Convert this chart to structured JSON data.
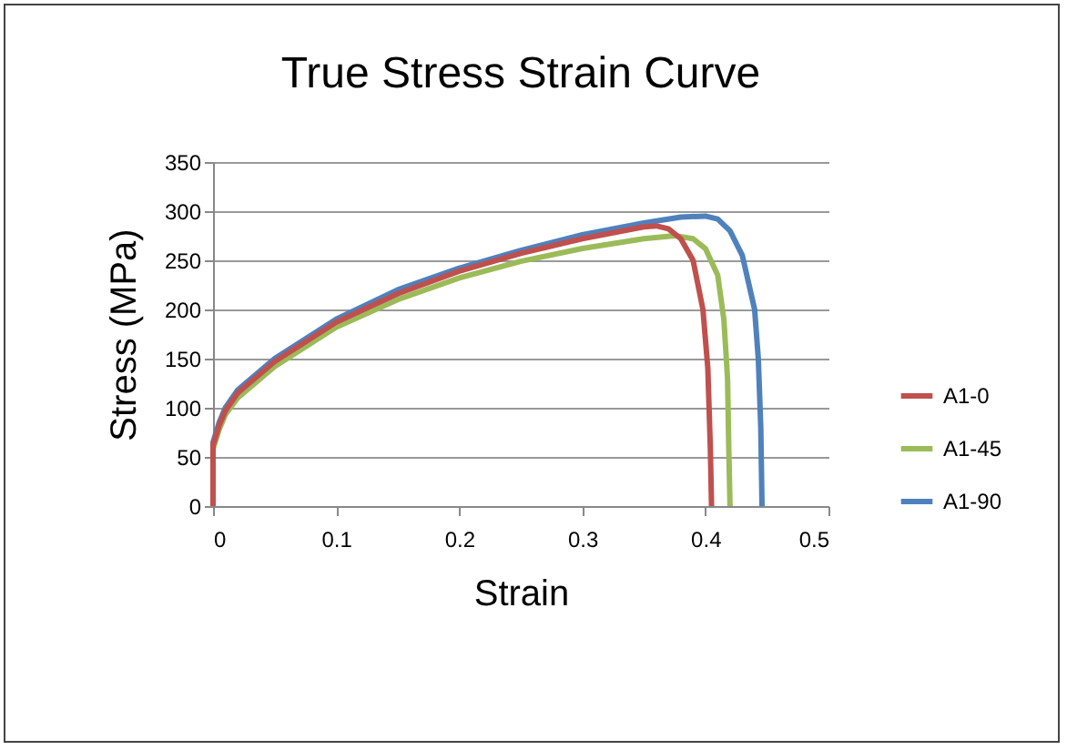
{
  "chart_data": {
    "type": "line",
    "title": "True Stress Strain Curve",
    "xlabel": "Strain",
    "ylabel": "Stress (MPa)",
    "xlim": [
      0,
      0.5
    ],
    "xticks": [
      0,
      0.1,
      0.2,
      0.3,
      0.4,
      0.5
    ],
    "ylim": [
      0,
      350
    ],
    "yticks": [
      0,
      50,
      100,
      150,
      200,
      250,
      300,
      350
    ],
    "grid": "y",
    "legend": "right",
    "series": [
      {
        "name": "A1-0",
        "color": "#c0504d",
        "x": [
          0,
          0,
          0.005,
          0.01,
          0.02,
          0.05,
          0.1,
          0.15,
          0.2,
          0.25,
          0.3,
          0.35,
          0.36,
          0.37,
          0.38,
          0.39,
          0.398,
          0.402,
          0.404,
          0.405
        ],
        "values": [
          0,
          62,
          82,
          97,
          115,
          147,
          187,
          216,
          239,
          257,
          272,
          284,
          285,
          282,
          272,
          250,
          200,
          140,
          60,
          0
        ]
      },
      {
        "name": "A1-45",
        "color": "#9bbb59",
        "x": [
          0,
          0,
          0.005,
          0.01,
          0.02,
          0.05,
          0.1,
          0.15,
          0.2,
          0.25,
          0.3,
          0.35,
          0.375,
          0.39,
          0.4,
          0.41,
          0.415,
          0.418,
          0.419,
          0.42
        ],
        "values": [
          0,
          58,
          78,
          93,
          110,
          142,
          182,
          210,
          232,
          249,
          262,
          272,
          275,
          272,
          262,
          235,
          190,
          130,
          60,
          0
        ]
      },
      {
        "name": "A1-90",
        "color": "#4f81bd",
        "x": [
          0,
          0,
          0.005,
          0.01,
          0.02,
          0.05,
          0.1,
          0.15,
          0.2,
          0.25,
          0.3,
          0.35,
          0.38,
          0.4,
          0.41,
          0.42,
          0.43,
          0.44,
          0.443,
          0.445,
          0.446
        ],
        "values": [
          0,
          65,
          85,
          100,
          118,
          150,
          190,
          220,
          242,
          260,
          276,
          288,
          294,
          295,
          292,
          280,
          255,
          200,
          150,
          80,
          0
        ]
      }
    ]
  }
}
